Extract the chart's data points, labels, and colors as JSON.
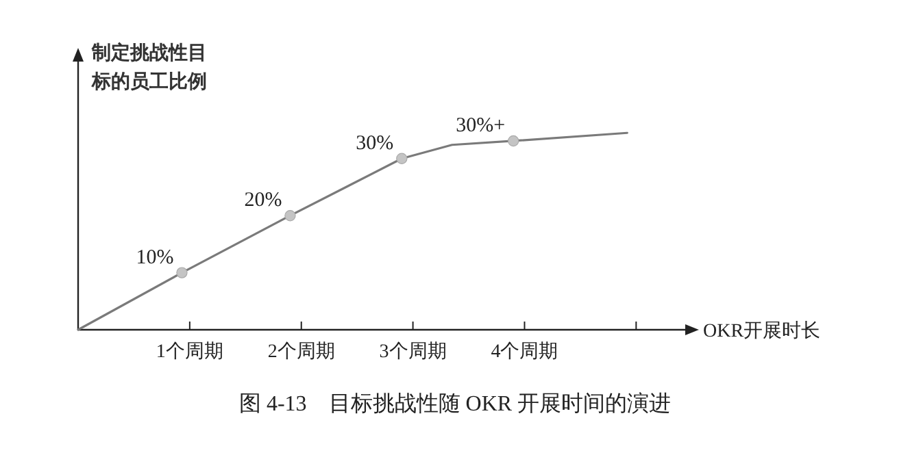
{
  "chart_data": {
    "type": "line",
    "title": "图 4-13　目标挑战性随 OKR 开展时间的演进",
    "ylabel": "制定挑战性目标的员工比例",
    "xlabel": "OKR开展时长",
    "xlim": [
      0,
      5.44
    ],
    "ylim": [
      0,
      47
    ],
    "xticks": [
      {
        "value": 1,
        "label": "1个周期"
      },
      {
        "value": 2,
        "label": "2个周期"
      },
      {
        "value": 3,
        "label": "3个周期"
      },
      {
        "value": 4,
        "label": "4个周期"
      },
      {
        "value": 5,
        "label": null
      }
    ],
    "tick_labels": "x",
    "grid": false,
    "annotations": [
      {
        "text": "30%+",
        "x": 3.9,
        "y": 33.1
      }
    ],
    "series": [
      {
        "color": "#7a7a7a",
        "marker": "none",
        "line_style": "solid",
        "x": [
          0,
          0.93,
          1.9,
          2.9,
          3.35,
          3.9,
          4.92
        ],
        "values": [
          0,
          10,
          20,
          30,
          32.4,
          33.1,
          34.5
        ]
      },
      {
        "type": "scatter",
        "color": "#c4c4c4",
        "marker": "circle",
        "x": [
          0.93,
          1.9,
          2.9,
          3.9
        ],
        "values": [
          10,
          20,
          30,
          33.1
        ],
        "value_labels": [
          "10%",
          "20%",
          "30%",
          null
        ]
      }
    ]
  }
}
